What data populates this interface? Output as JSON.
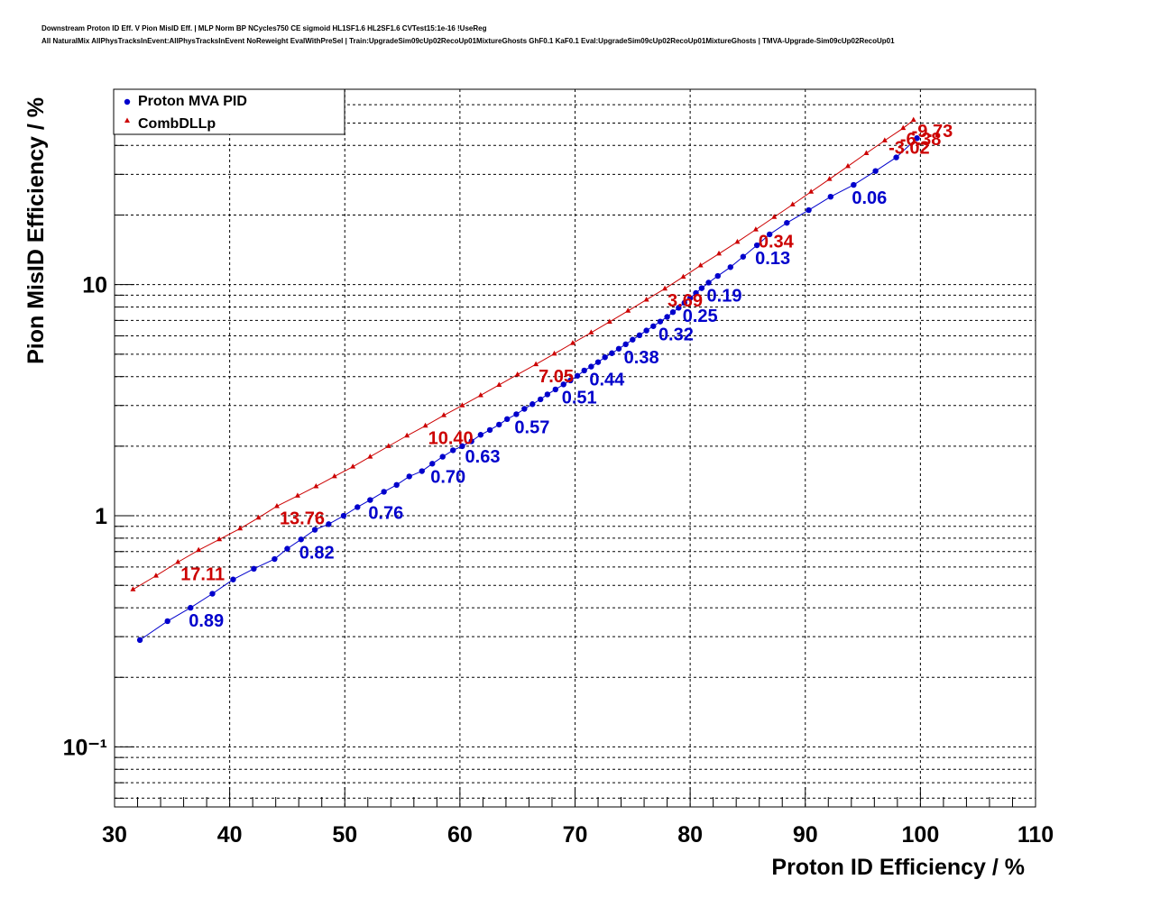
{
  "chart_data": {
    "type": "scatter",
    "title_lines": [
      "Downstream Proton ID Eff. V Pion MisID Eff. | MLP Norm BP NCycles750 CE sigmoid HL1SF1.6 HL2SF1.6 CVTest15:1e-16 !UseReg",
      "All NaturalMix AllPhysTracksInEvent:AllPhysTracksInEvent NoReweight EvalWithPreSel | Train:UpgradeSim09cUp02RecoUp01MixtureGhosts GhF0.1 KaF0.1 Eval:UpgradeSim09cUp02RecoUp01MixtureGhosts | TMVA-Upgrade-Sim09cUp02RecoUp01"
    ],
    "xlabel": "Proton ID Efficiency / %",
    "ylabel": "Pion MisID Efficiency / %",
    "xlim": [
      30,
      110
    ],
    "ylim": [
      0.055,
      70
    ],
    "yscale": "log",
    "grid": true,
    "legend_position": "top-left",
    "x_ticks": [
      "30",
      "40",
      "50",
      "60",
      "70",
      "80",
      "90",
      "100",
      "110"
    ],
    "y_ticks": [
      "10⁻¹",
      "1",
      "10"
    ],
    "series": [
      {
        "name": "Proton MVA PID",
        "color": "#0000cc",
        "marker": "circle",
        "x": [
          32.2,
          34.6,
          36.6,
          38.5,
          40.3,
          42.1,
          43.9,
          45.0,
          46.2,
          47.4,
          48.6,
          49.9,
          51.1,
          52.2,
          53.4,
          54.5,
          55.6,
          56.7,
          57.6,
          58.5,
          59.4,
          60.2,
          61.0,
          61.8,
          62.6,
          63.4,
          64.1,
          64.9,
          65.6,
          66.3,
          67.0,
          67.6,
          68.3,
          69.0,
          69.6,
          70.2,
          70.8,
          71.4,
          72.0,
          72.6,
          73.2,
          73.8,
          74.4,
          75.0,
          75.6,
          76.2,
          76.8,
          77.4,
          78.0,
          78.5,
          79.0,
          79.5,
          80.0,
          80.5,
          81.0,
          81.6,
          82.4,
          83.5,
          84.6,
          85.8,
          86.9,
          88.4,
          90.3,
          92.2,
          94.2,
          96.1,
          97.9,
          99.7
        ],
        "y": [
          0.29,
          0.35,
          0.4,
          0.46,
          0.53,
          0.59,
          0.65,
          0.72,
          0.79,
          0.87,
          0.92,
          1.0,
          1.09,
          1.17,
          1.27,
          1.36,
          1.48,
          1.56,
          1.68,
          1.8,
          1.92,
          2.0,
          2.1,
          2.24,
          2.35,
          2.48,
          2.62,
          2.75,
          2.9,
          3.04,
          3.19,
          3.35,
          3.52,
          3.7,
          3.85,
          4.03,
          4.25,
          4.42,
          4.62,
          4.85,
          5.05,
          5.28,
          5.52,
          5.78,
          6.04,
          6.33,
          6.61,
          6.92,
          7.25,
          7.6,
          7.94,
          8.34,
          8.74,
          9.2,
          9.65,
          10.2,
          10.9,
          11.9,
          13.2,
          14.8,
          16.5,
          18.5,
          21.0,
          24.0,
          27.0,
          31.0,
          35.5,
          43.0
        ]
      },
      {
        "name": "CombDLLp",
        "color": "#cc0000",
        "marker": "triangle",
        "x": [
          31.6,
          33.6,
          35.5,
          37.3,
          39.1,
          40.9,
          42.5,
          44.1,
          45.9,
          47.5,
          49.1,
          50.7,
          52.2,
          53.8,
          55.4,
          57.0,
          58.6,
          60.2,
          61.8,
          63.4,
          65.0,
          66.6,
          68.2,
          69.8,
          71.4,
          73.0,
          74.6,
          76.2,
          77.8,
          79.4,
          80.9,
          82.5,
          84.1,
          85.7,
          87.3,
          88.9,
          90.5,
          92.1,
          93.7,
          95.3,
          96.9,
          98.5,
          99.4
        ],
        "y": [
          0.48,
          0.55,
          0.63,
          0.71,
          0.79,
          0.88,
          0.98,
          1.1,
          1.22,
          1.34,
          1.48,
          1.63,
          1.8,
          2.0,
          2.22,
          2.45,
          2.72,
          3.0,
          3.32,
          3.68,
          4.08,
          4.52,
          5.02,
          5.58,
          6.2,
          6.9,
          7.7,
          8.6,
          9.6,
          10.8,
          12.1,
          13.6,
          15.3,
          17.3,
          19.6,
          22.2,
          25.2,
          28.6,
          32.5,
          37.0,
          42.0,
          47.5,
          51.5
        ]
      }
    ],
    "mva_cut_labels": [
      {
        "text": "0.89",
        "x": 36.6,
        "y": 0.4
      },
      {
        "text": "0.82",
        "x": 46.2,
        "y": 0.79
      },
      {
        "text": "0.76",
        "x": 52.2,
        "y": 1.17
      },
      {
        "text": "0.70",
        "x": 57.6,
        "y": 1.68
      },
      {
        "text": "0.63",
        "x": 60.6,
        "y": 2.05
      },
      {
        "text": "0.57",
        "x": 64.9,
        "y": 2.75
      },
      {
        "text": "0.51",
        "x": 69.0,
        "y": 3.7
      },
      {
        "text": "0.44",
        "x": 71.4,
        "y": 4.42
      },
      {
        "text": "0.38",
        "x": 74.4,
        "y": 5.52
      },
      {
        "text": "0.32",
        "x": 77.4,
        "y": 6.92
      },
      {
        "text": "0.25",
        "x": 79.5,
        "y": 8.34
      },
      {
        "text": "0.19",
        "x": 81.6,
        "y": 10.2
      },
      {
        "text": "0.13",
        "x": 85.8,
        "y": 14.8
      },
      {
        "text": "0.06",
        "x": 94.2,
        "y": 27.0
      }
    ],
    "dll_cut_labels": [
      {
        "text": "17.11",
        "x": 35.5,
        "y": 0.63
      },
      {
        "text": "13.76",
        "x": 44.1,
        "y": 1.1
      },
      {
        "text": "10.40",
        "x": 57.0,
        "y": 2.45
      },
      {
        "text": "7.05",
        "x": 66.6,
        "y": 4.52
      },
      {
        "text": "3.69",
        "x": 77.8,
        "y": 9.6
      },
      {
        "text": "0.34",
        "x": 85.7,
        "y": 17.3
      },
      {
        "text": "-3.02",
        "x": 97.0,
        "y": 44.0
      },
      {
        "text": "-6.38",
        "x": 98.0,
        "y": 48.0
      },
      {
        "text": "-9.73",
        "x": 99.0,
        "y": 52.0
      }
    ]
  }
}
